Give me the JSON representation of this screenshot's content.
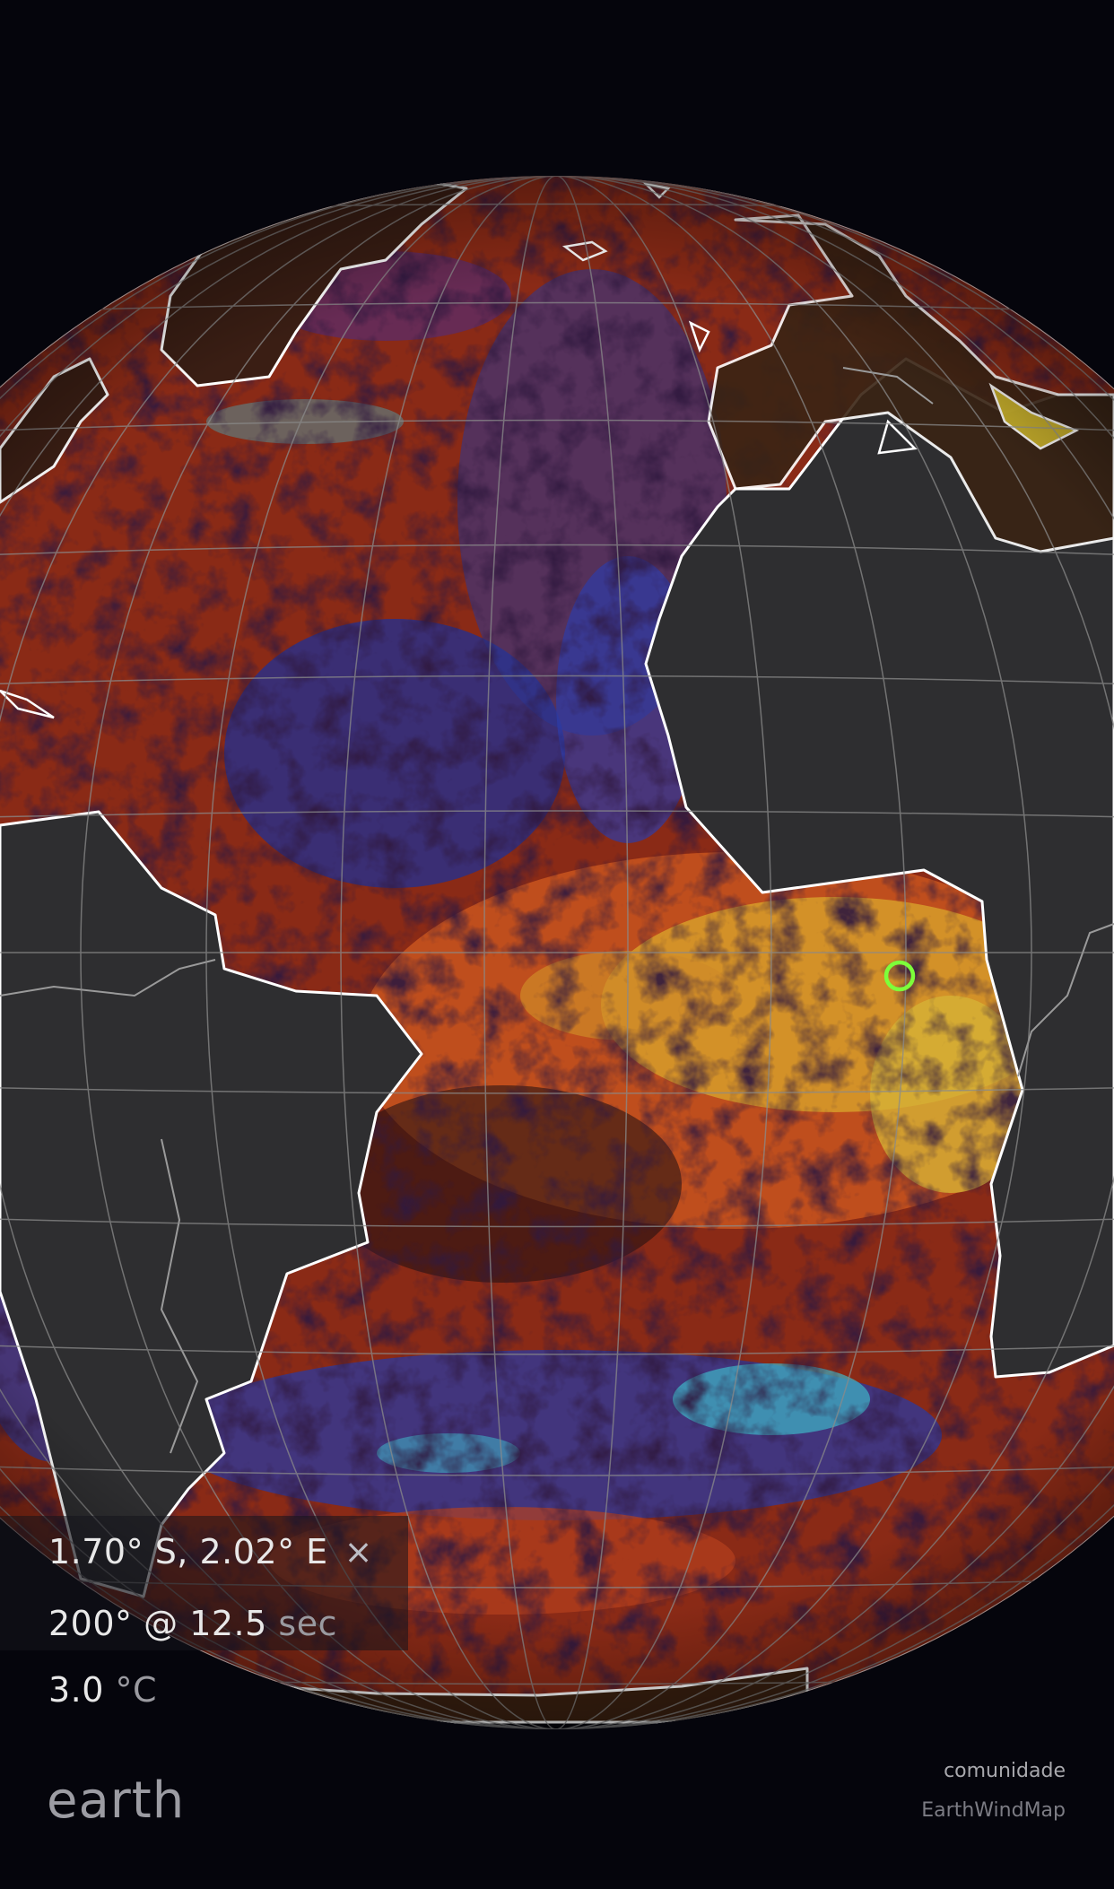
{
  "location": {
    "coords": "1.70° S, 2.02° E",
    "close_symbol": "×"
  },
  "waves": {
    "value": "200° @ 12.5",
    "unit": "sec"
  },
  "temperature": {
    "value": "3.0",
    "unit": "°C"
  },
  "brand": "earth",
  "footer": {
    "community_link": "comunidade",
    "partner": "EarthWindMap"
  },
  "colors": {
    "background": "#05050c",
    "land": "#2e2e30",
    "coastline": "#ffffff",
    "graticule": "#8a8a8a",
    "marker": "#7dff3a",
    "ocean_warm": "#b3341c",
    "ocean_hot": "#d9b530",
    "ocean_cold": "#2a3aa0",
    "ocean_cyan": "#3fb6c8"
  },
  "map": {
    "projection": "orthographic",
    "overlay": "sea surface temperature anomaly",
    "selected_point": {
      "lat": -1.7,
      "lon": 2.02
    }
  }
}
